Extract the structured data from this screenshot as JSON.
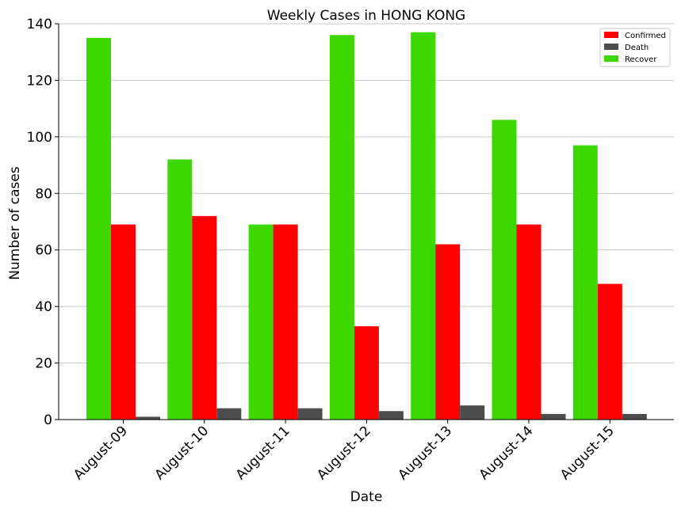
{
  "chart_data": {
    "type": "bar",
    "title": "Weekly Cases in HONG KONG",
    "xlabel": "Date",
    "ylabel": "Number of cases",
    "categories": [
      "August-09",
      "August-10",
      "August-11",
      "August-12",
      "August-13",
      "August-14",
      "August-15"
    ],
    "series": [
      {
        "name": "Recover",
        "color": "#3dd800",
        "values": [
          135,
          92,
          69,
          136,
          137,
          106,
          97
        ]
      },
      {
        "name": "Confirmed",
        "color": "#ff0000",
        "values": [
          69,
          72,
          69,
          33,
          62,
          69,
          48
        ]
      },
      {
        "name": "Death",
        "color": "#4d4d4d",
        "values": [
          1,
          4,
          4,
          3,
          5,
          2,
          2
        ]
      }
    ],
    "legend_order": [
      "Confirmed",
      "Death",
      "Recover"
    ],
    "ylim": [
      0,
      140
    ],
    "yticks": [
      "0",
      "20",
      "40",
      "60",
      "80",
      "100",
      "120",
      "140"
    ],
    "grid": "horizontal",
    "legend_position": "top-right"
  }
}
